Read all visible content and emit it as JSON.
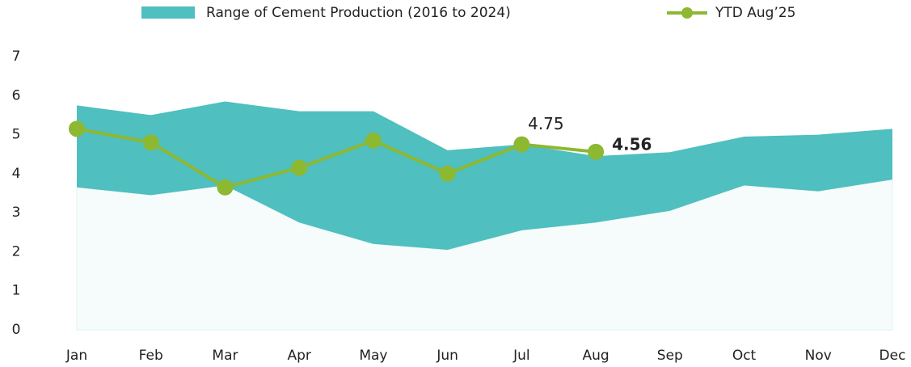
{
  "chart_data": {
    "type": "range-line",
    "categories": [
      "Jan",
      "Feb",
      "Mar",
      "Apr",
      "May",
      "Jun",
      "Jul",
      "Aug",
      "Sep",
      "Oct",
      "Nov",
      "Dec"
    ],
    "series": [
      {
        "name": "Range of Cement Production (2016 to 2024)",
        "color": "#4fbfbf",
        "low": [
          3.65,
          3.45,
          3.7,
          2.75,
          2.2,
          2.05,
          2.55,
          2.75,
          3.05,
          3.7,
          3.55,
          3.85
        ],
        "high": [
          5.75,
          5.5,
          5.85,
          5.6,
          5.6,
          4.6,
          4.75,
          4.45,
          4.55,
          4.95,
          5.0,
          5.15
        ]
      },
      {
        "name": "YTD Aug’25",
        "color": "#8db832",
        "values": [
          5.15,
          4.8,
          3.65,
          4.15,
          4.85,
          4.0,
          4.75,
          4.56,
          null,
          null,
          null,
          null
        ],
        "value_labels": [
          null,
          null,
          null,
          null,
          null,
          null,
          "4.75",
          "4.56",
          null,
          null,
          null,
          null
        ]
      }
    ],
    "ylim": [
      0,
      7
    ],
    "yticks": [
      0,
      1,
      2,
      3,
      4,
      5,
      6,
      7
    ],
    "grid": false,
    "legend": "top"
  }
}
